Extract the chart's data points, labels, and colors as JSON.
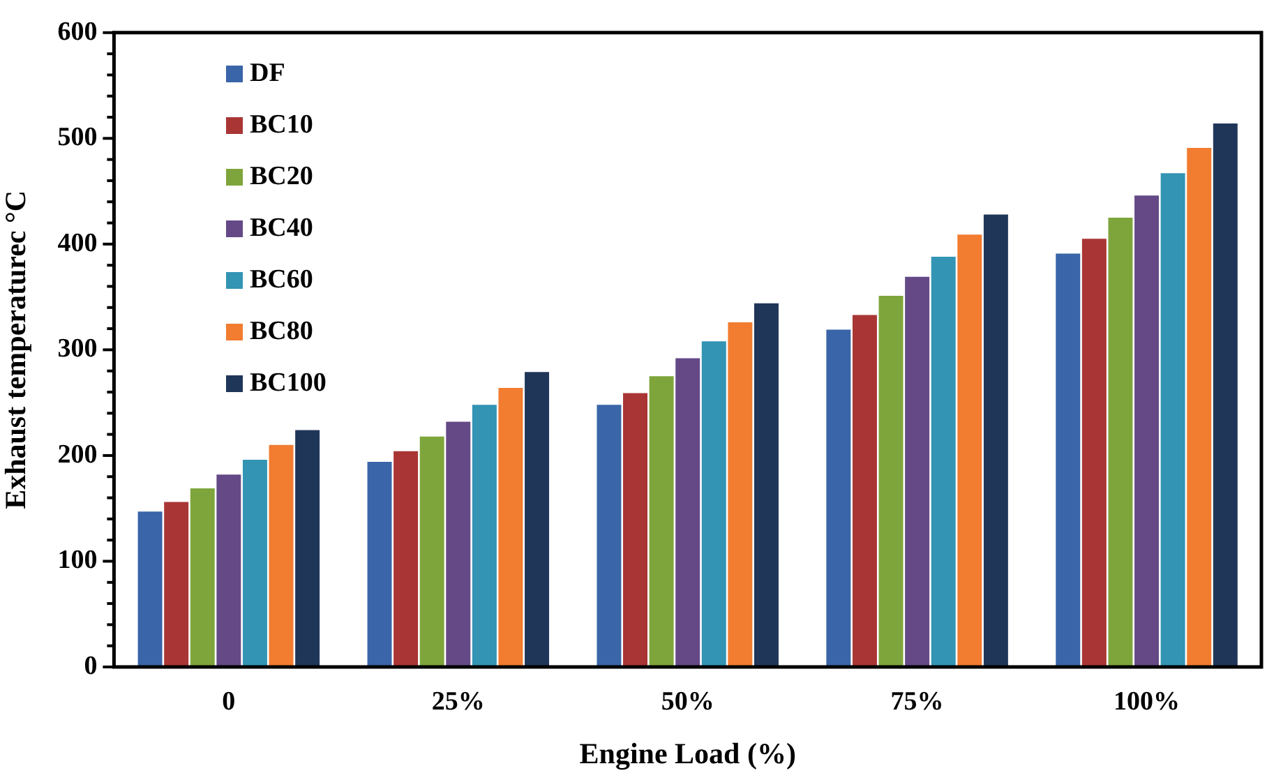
{
  "chart_data": {
    "type": "bar",
    "xlabel": "Engine Load (%)",
    "ylabel": "Exhaust temperaturec °C",
    "categories": [
      "0",
      "25%",
      "50%",
      "75%",
      "100%"
    ],
    "series": [
      {
        "name": "DF",
        "color": "#3a65a8",
        "values": [
          147,
          194,
          248,
          319,
          391
        ]
      },
      {
        "name": "BC10",
        "color": "#a93535",
        "values": [
          156,
          204,
          259,
          333,
          405
        ]
      },
      {
        "name": "BC20",
        "color": "#7ea53c",
        "values": [
          169,
          218,
          275,
          351,
          425
        ]
      },
      {
        "name": "BC40",
        "color": "#654987",
        "values": [
          182,
          232,
          292,
          369,
          446
        ]
      },
      {
        "name": "BC60",
        "color": "#3394b4",
        "values": [
          196,
          248,
          308,
          388,
          467
        ]
      },
      {
        "name": "BC80",
        "color": "#f27c30",
        "values": [
          210,
          264,
          326,
          409,
          491
        ]
      },
      {
        "name": "BC100",
        "color": "#1f3659",
        "values": [
          224,
          279,
          344,
          428,
          514
        ]
      }
    ],
    "ylim": [
      0,
      600
    ],
    "yticks": [
      0,
      {
        "value": 20,
        "label": null
      },
      {
        "value": 40,
        "label": null
      },
      {
        "value": 60,
        "label": null
      },
      {
        "value": 80,
        "label": null
      },
      100,
      {
        "value": 120,
        "label": null
      },
      {
        "value": 140,
        "label": null
      },
      {
        "value": 160,
        "label": null
      },
      {
        "value": 180,
        "label": null
      },
      200,
      {
        "value": 220,
        "label": null
      },
      {
        "value": 240,
        "label": null
      },
      {
        "value": 260,
        "label": null
      },
      {
        "value": 280,
        "label": null
      },
      300,
      {
        "value": 320,
        "label": null
      },
      {
        "value": 340,
        "label": null
      },
      {
        "value": 360,
        "label": null
      },
      {
        "value": 380,
        "label": null
      },
      400,
      {
        "value": 420,
        "label": null
      },
      {
        "value": 440,
        "label": null
      },
      {
        "value": 460,
        "label": null
      },
      {
        "value": 480,
        "label": null
      },
      500,
      {
        "value": 520,
        "label": null
      },
      {
        "value": 540,
        "label": null
      },
      {
        "value": 560,
        "label": null
      },
      {
        "value": 580,
        "label": null
      },
      600
    ],
    "grid": false,
    "legend": "top left"
  }
}
